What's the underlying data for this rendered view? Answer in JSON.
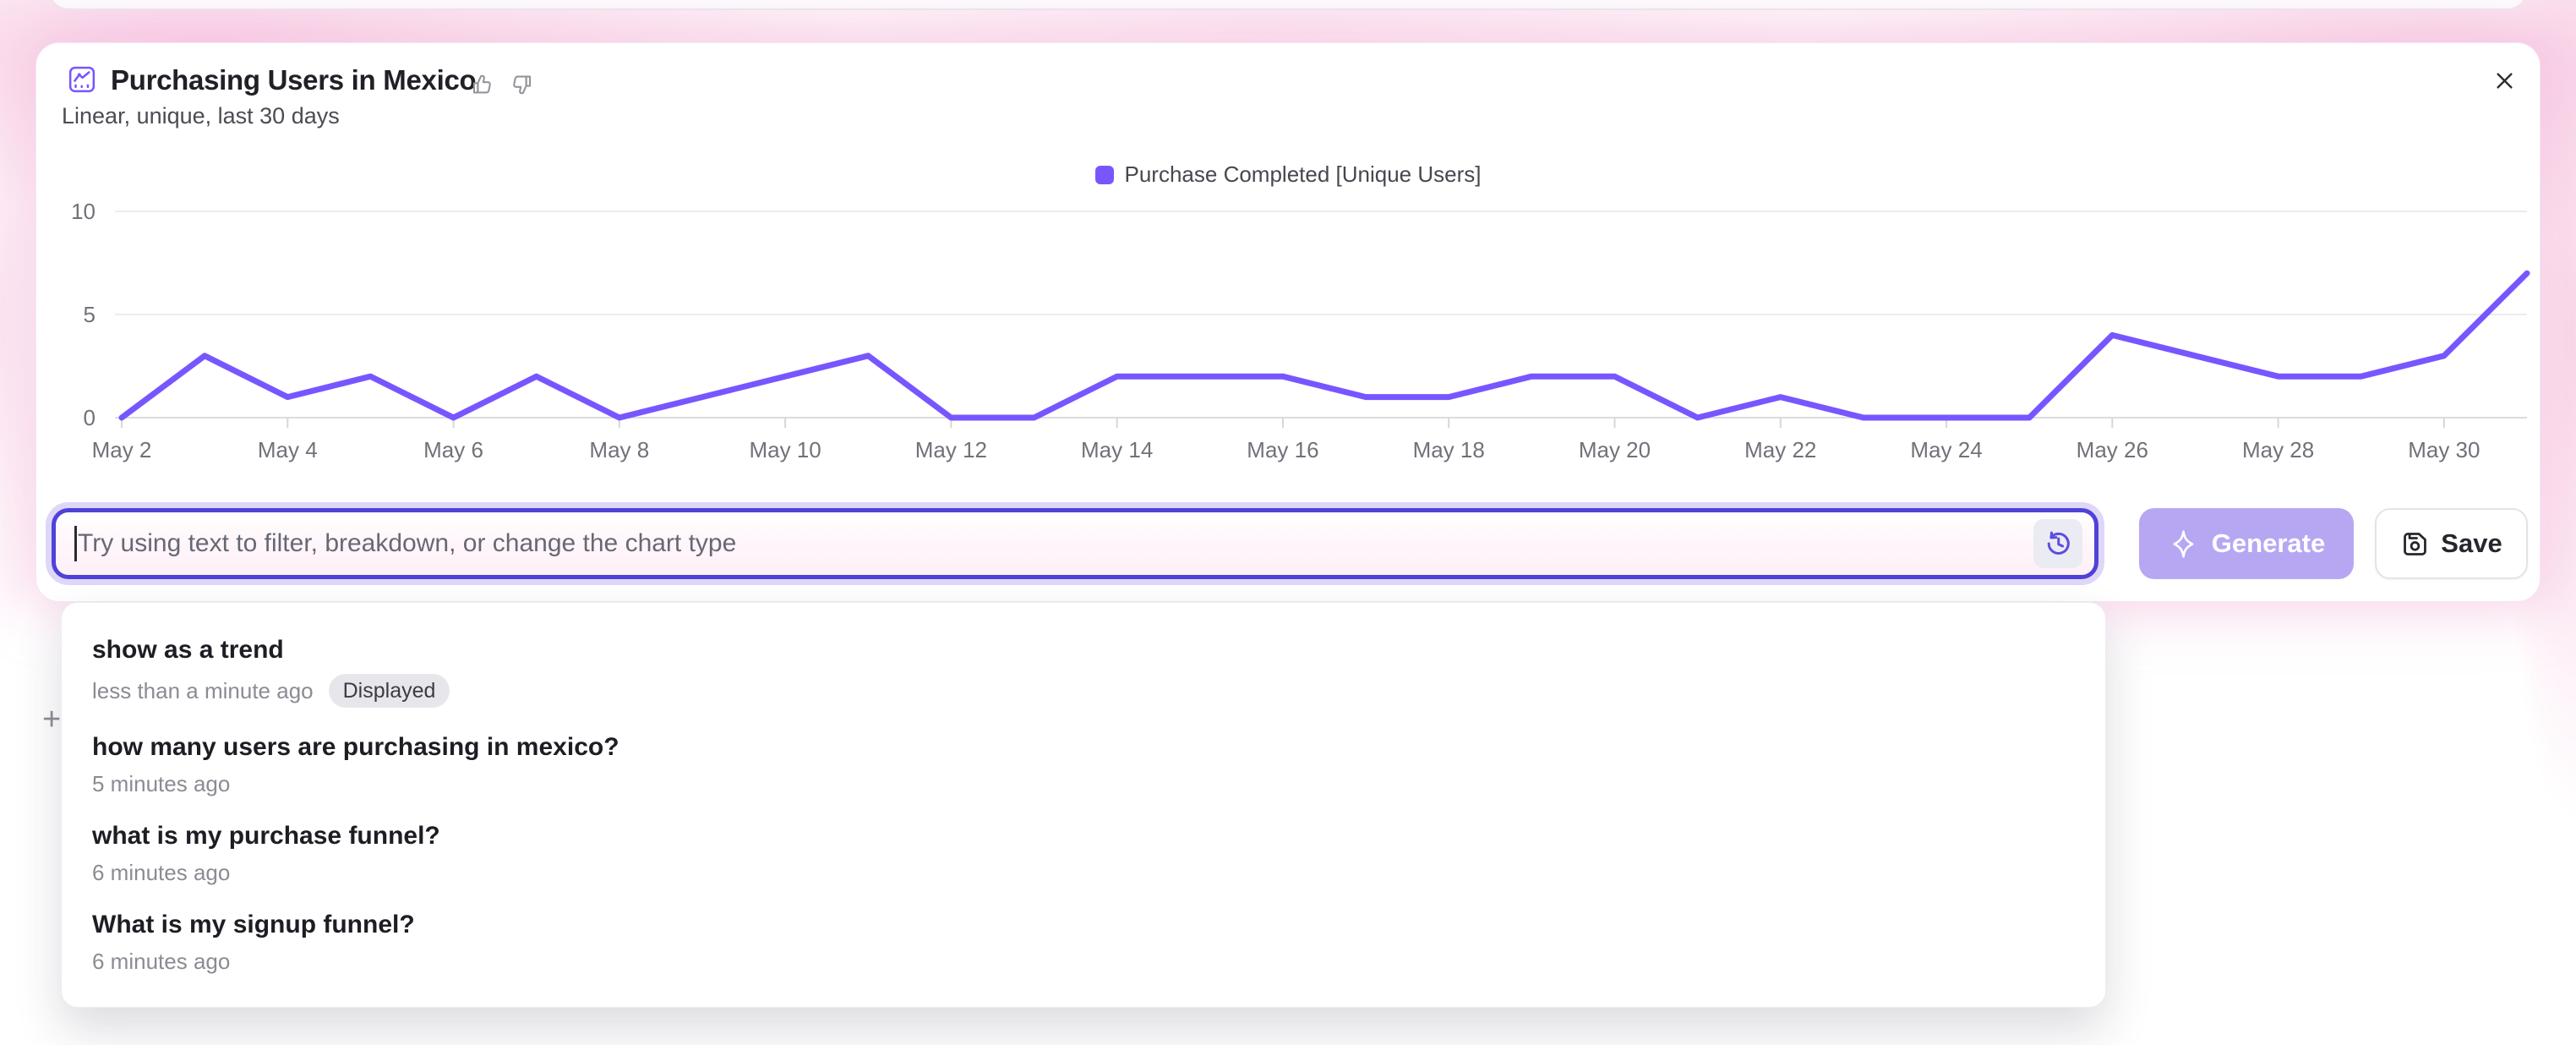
{
  "header": {
    "title": "Purchasing Users in Mexico",
    "subtitle": "Linear, unique, last 30 days",
    "chart_icon": "line-chart-icon",
    "thumbs_up_icon": "thumbs-up-icon",
    "thumbs_down_icon": "thumbs-down-icon",
    "close_icon": "close-icon"
  },
  "legend": {
    "label": "Purchase Completed [Unique Users]",
    "color": "#7856ff"
  },
  "chart_data": {
    "type": "line",
    "title": "Purchasing Users in Mexico",
    "x": [
      "May 2",
      "May 3",
      "May 4",
      "May 5",
      "May 6",
      "May 7",
      "May 8",
      "May 9",
      "May 10",
      "May 11",
      "May 12",
      "May 13",
      "May 14",
      "May 15",
      "May 16",
      "May 17",
      "May 18",
      "May 19",
      "May 20",
      "May 21",
      "May 22",
      "May 23",
      "May 24",
      "May 25",
      "May 26",
      "May 27",
      "May 28",
      "May 29",
      "May 30",
      "May 31"
    ],
    "x_label_every": 2,
    "series": [
      {
        "name": "Purchase Completed [Unique Users]",
        "color": "#7856ff",
        "values": [
          0,
          3,
          1,
          2,
          0,
          2,
          0,
          1,
          2,
          3,
          0,
          0,
          2,
          2,
          2,
          1,
          1,
          2,
          2,
          0,
          1,
          0,
          0,
          0,
          4,
          3,
          2,
          2,
          3,
          7
        ]
      }
    ],
    "ylim": [
      0,
      10
    ],
    "yticks": [
      0,
      5,
      10
    ],
    "xlabel": "",
    "ylabel": "",
    "grid": "horizontal",
    "legend_position": "top-center"
  },
  "prompt_bar": {
    "placeholder": "Try using text to filter, breakdown, or change the chart type",
    "value": "",
    "history_icon": "history-clock-icon",
    "generate_label": "Generate",
    "generate_icon": "sparkle-icon",
    "generate_enabled": false,
    "save_label": "Save",
    "save_icon": "save-file-icon"
  },
  "history_dropdown": {
    "items": [
      {
        "query": "show as a trend",
        "time": "less than a minute ago",
        "badge": "Displayed"
      },
      {
        "query": "how many users are purchasing in mexico?",
        "time": "5 minutes ago",
        "badge": ""
      },
      {
        "query": "what is my purchase funnel?",
        "time": "6 minutes ago",
        "badge": ""
      },
      {
        "query": "What is my signup funnel?",
        "time": "6 minutes ago",
        "badge": ""
      }
    ]
  },
  "background": {
    "plus_glyph": "+"
  },
  "colors": {
    "accent_purple": "#7856ff",
    "input_border": "#4f42d8",
    "input_halo": "#ded7f9",
    "generate_bg": "#b7a7f3",
    "glow_pink": "#f6bedd",
    "grid_line": "#ececef",
    "axis_line": "#dcdce0",
    "tick_text": "#71717a"
  }
}
